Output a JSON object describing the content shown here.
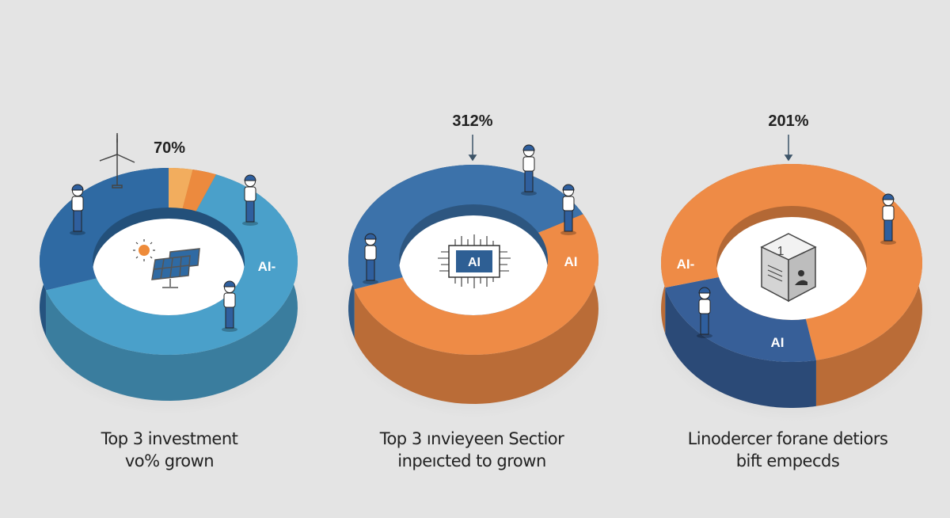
{
  "chart_data": [
    {
      "type": "pie",
      "variant": "3d-donut",
      "value_label": "70%",
      "slice_label": "AI-",
      "slices": [
        {
          "value": 0.03,
          "color": "#f2ad5e"
        },
        {
          "value": 0.03,
          "color": "#ec8a3e"
        },
        {
          "value": 0.64,
          "color": "#4aa0ca"
        },
        {
          "value": 0.3,
          "color": "#2f6aa3"
        }
      ],
      "caption": [
        "Top 3 investment",
        "vo% grown"
      ],
      "center_icon": "solar-panel-icon"
    },
    {
      "type": "pie",
      "variant": "3d-donut",
      "value_label": "312%",
      "slice_label": "AI",
      "center_text": "AI",
      "slices": [
        {
          "value": 0.53,
          "color": "#ee8b46"
        },
        {
          "value": 0.47,
          "color": "#3c72aa"
        }
      ],
      "start_offset": 0.17,
      "caption": [
        "Top 3 ınvieyeen Sectior",
        "inpeıcted to grown"
      ],
      "center_icon": "ai-chip-icon"
    },
    {
      "type": "pie",
      "variant": "3d-donut",
      "value_label": "201%",
      "slice_labels": [
        "AI-",
        "AI"
      ],
      "center_text": "1",
      "slices": [
        {
          "value": 0.47,
          "color": "#ee8b46"
        },
        {
          "value": 0.24,
          "color": "#375f98"
        },
        {
          "value": 0.29,
          "color": "#ee8b46"
        }
      ],
      "caption": [
        "Linodercer forane detiors",
        "bift empecds"
      ],
      "center_icon": "data-cube-icon"
    }
  ],
  "colors": {
    "background": "#e4e4e4",
    "text": "#222222",
    "arrow": "#3d5468"
  }
}
